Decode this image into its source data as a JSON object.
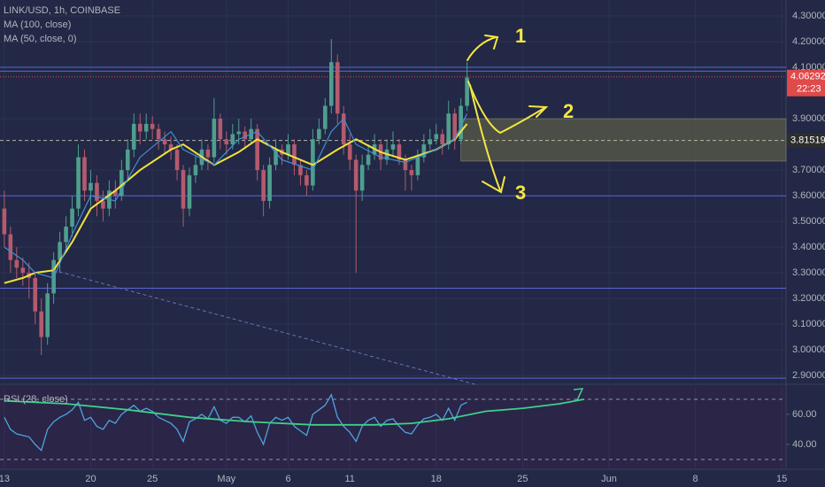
{
  "chart_data": {
    "type": "candlestick",
    "title": "LINK/USD, 1h, COINBASE",
    "legend_items": [
      "MA (100, close)",
      "MA (50, close, 0)"
    ],
    "up_color": "#4f9e8e",
    "down_color": "#b55a6e",
    "xlim": [
      -0.7,
      126.7
    ],
    "xticks": [
      {
        "value": 0,
        "label": "13"
      },
      {
        "value": 14,
        "label": "20"
      },
      {
        "value": 24,
        "label": "25"
      },
      {
        "value": 36,
        "label": "May"
      },
      {
        "value": 46,
        "label": "6"
      },
      {
        "value": 56,
        "label": "11"
      },
      {
        "value": 70,
        "label": "18"
      },
      {
        "value": 84,
        "label": "25"
      },
      {
        "value": 98,
        "label": "Jun"
      },
      {
        "value": 112,
        "label": "8"
      },
      {
        "value": 126,
        "label": "15"
      }
    ],
    "ylim": [
      2.88,
      4.362
    ],
    "yticks": [
      {
        "value": 4.3,
        "label": "4.30000"
      },
      {
        "value": 4.2,
        "label": "4.20000"
      },
      {
        "value": 4.1,
        "label": "4.10000"
      },
      {
        "value": 3.9,
        "label": "3.90000"
      },
      {
        "value": 3.7,
        "label": "3.70000"
      },
      {
        "value": 3.6,
        "label": "3.60000"
      },
      {
        "value": 3.5,
        "label": "3.50000"
      },
      {
        "value": 3.4,
        "label": "3.40000"
      },
      {
        "value": 3.3,
        "label": "3.30000"
      },
      {
        "value": 3.2,
        "label": "3.20000"
      },
      {
        "value": 3.1,
        "label": "3.10000"
      },
      {
        "value": 3.0,
        "label": "3.00000"
      },
      {
        "value": 2.9,
        "label": "2.90000"
      }
    ],
    "grid": true,
    "ohlc": [
      [
        3.55,
        3.62,
        3.4,
        3.45
      ],
      [
        3.45,
        3.48,
        3.3,
        3.35
      ],
      [
        3.35,
        3.4,
        3.28,
        3.32
      ],
      [
        3.32,
        3.36,
        3.25,
        3.3
      ],
      [
        3.3,
        3.34,
        3.2,
        3.28
      ],
      [
        3.28,
        3.3,
        3.1,
        3.15
      ],
      [
        3.15,
        3.2,
        2.98,
        3.05
      ],
      [
        3.05,
        3.26,
        3.02,
        3.22
      ],
      [
        3.22,
        3.38,
        3.18,
        3.35
      ],
      [
        3.35,
        3.46,
        3.3,
        3.42
      ],
      [
        3.42,
        3.52,
        3.38,
        3.48
      ],
      [
        3.48,
        3.6,
        3.44,
        3.55
      ],
      [
        3.55,
        3.8,
        3.52,
        3.75
      ],
      [
        3.75,
        3.78,
        3.58,
        3.62
      ],
      [
        3.62,
        3.7,
        3.56,
        3.65
      ],
      [
        3.65,
        3.68,
        3.52,
        3.58
      ],
      [
        3.58,
        3.62,
        3.5,
        3.55
      ],
      [
        3.55,
        3.66,
        3.52,
        3.62
      ],
      [
        3.62,
        3.66,
        3.55,
        3.6
      ],
      [
        3.6,
        3.74,
        3.58,
        3.7
      ],
      [
        3.7,
        3.82,
        3.66,
        3.78
      ],
      [
        3.78,
        3.92,
        3.75,
        3.88
      ],
      [
        3.88,
        3.92,
        3.8,
        3.85
      ],
      [
        3.85,
        3.92,
        3.82,
        3.88
      ],
      [
        3.88,
        3.91,
        3.82,
        3.86
      ],
      [
        3.86,
        3.88,
        3.78,
        3.82
      ],
      [
        3.82,
        3.85,
        3.76,
        3.8
      ],
      [
        3.8,
        3.83,
        3.74,
        3.78
      ],
      [
        3.78,
        3.8,
        3.66,
        3.7
      ],
      [
        3.7,
        3.72,
        3.48,
        3.55
      ],
      [
        3.55,
        3.71,
        3.52,
        3.68
      ],
      [
        3.68,
        3.76,
        3.65,
        3.72
      ],
      [
        3.72,
        3.82,
        3.7,
        3.78
      ],
      [
        3.78,
        3.8,
        3.7,
        3.75
      ],
      [
        3.75,
        3.98,
        3.73,
        3.9
      ],
      [
        3.9,
        3.92,
        3.78,
        3.82
      ],
      [
        3.82,
        3.85,
        3.76,
        3.8
      ],
      [
        3.8,
        3.88,
        3.78,
        3.84
      ],
      [
        3.84,
        3.9,
        3.8,
        3.85
      ],
      [
        3.85,
        3.87,
        3.78,
        3.82
      ],
      [
        3.82,
        3.9,
        3.8,
        3.86
      ],
      [
        3.86,
        3.88,
        3.66,
        3.7
      ],
      [
        3.7,
        3.72,
        3.52,
        3.58
      ],
      [
        3.58,
        3.75,
        3.55,
        3.72
      ],
      [
        3.72,
        3.82,
        3.7,
        3.78
      ],
      [
        3.78,
        3.8,
        3.72,
        3.76
      ],
      [
        3.76,
        3.84,
        3.74,
        3.8
      ],
      [
        3.8,
        3.82,
        3.68,
        3.72
      ],
      [
        3.72,
        3.74,
        3.64,
        3.68
      ],
      [
        3.68,
        3.7,
        3.6,
        3.64
      ],
      [
        3.64,
        3.86,
        3.62,
        3.82
      ],
      [
        3.82,
        3.9,
        3.8,
        3.86
      ],
      [
        3.86,
        3.98,
        3.84,
        3.95
      ],
      [
        3.95,
        4.21,
        3.92,
        4.12
      ],
      [
        4.12,
        4.15,
        3.88,
        3.92
      ],
      [
        3.92,
        3.95,
        3.76,
        3.8
      ],
      [
        3.8,
        3.84,
        3.7,
        3.74
      ],
      [
        3.74,
        3.76,
        3.3,
        3.62
      ],
      [
        3.62,
        3.76,
        3.58,
        3.72
      ],
      [
        3.72,
        3.8,
        3.7,
        3.76
      ],
      [
        3.76,
        3.84,
        3.74,
        3.8
      ],
      [
        3.8,
        3.82,
        3.7,
        3.74
      ],
      [
        3.74,
        3.82,
        3.72,
        3.78
      ],
      [
        3.78,
        3.85,
        3.75,
        3.8
      ],
      [
        3.8,
        3.82,
        3.72,
        3.74
      ],
      [
        3.74,
        3.76,
        3.62,
        3.7
      ],
      [
        3.7,
        3.72,
        3.62,
        3.68
      ],
      [
        3.68,
        3.78,
        3.66,
        3.75
      ],
      [
        3.75,
        3.84,
        3.73,
        3.8
      ],
      [
        3.8,
        3.86,
        3.78,
        3.82
      ],
      [
        3.82,
        3.88,
        3.8,
        3.84
      ],
      [
        3.84,
        3.86,
        3.76,
        3.8
      ],
      [
        3.8,
        3.97,
        3.78,
        3.92
      ],
      [
        3.92,
        3.94,
        3.78,
        3.82
      ],
      [
        3.82,
        3.98,
        3.8,
        3.95
      ],
      [
        3.95,
        4.12,
        3.93,
        4.06
      ]
    ],
    "series": [
      {
        "name": "MA (100, close)",
        "color": "#f2e33a",
        "x": [
          0,
          3,
          5,
          8,
          11,
          14,
          18,
          22,
          27,
          29,
          34,
          38,
          41,
          45,
          50,
          54,
          57,
          61,
          65,
          70,
          73,
          75
        ],
        "values": [
          3.26,
          3.28,
          3.3,
          3.31,
          3.42,
          3.55,
          3.62,
          3.7,
          3.78,
          3.8,
          3.72,
          3.77,
          3.82,
          3.77,
          3.72,
          3.78,
          3.82,
          3.77,
          3.74,
          3.78,
          3.82,
          3.88
        ]
      },
      {
        "name": "MA (50, close, 0)",
        "color": "#3f8fd6",
        "x": [
          0,
          3,
          5,
          8,
          11,
          14,
          18,
          22,
          27,
          29,
          34,
          38,
          41,
          45,
          50,
          53,
          55,
          57,
          61,
          65,
          70,
          73,
          75
        ],
        "values": [
          3.4,
          3.35,
          3.3,
          3.28,
          3.45,
          3.6,
          3.58,
          3.75,
          3.85,
          3.78,
          3.72,
          3.82,
          3.85,
          3.74,
          3.7,
          3.85,
          3.9,
          3.8,
          3.75,
          3.73,
          3.78,
          3.82,
          3.92
        ]
      }
    ],
    "levels": [
      {
        "value": 4.1,
        "color": "#5a67d8",
        "style": "solid"
      },
      {
        "value": 4.085,
        "color": "#5a67d8",
        "style": "solid"
      },
      {
        "value": 3.6,
        "color": "#5a67d8",
        "style": "solid"
      },
      {
        "value": 3.24,
        "color": "#5a67d8",
        "style": "solid"
      },
      {
        "value": 2.89,
        "color": "#5a67d8",
        "style": "solid"
      },
      {
        "value": 4.06292,
        "color": "#e04a4a",
        "style": "dotted"
      },
      {
        "value": 3.81519,
        "color": "#b8b8a0",
        "style": "dashed"
      }
    ],
    "zone": {
      "x": 74,
      "ylim": [
        3.735,
        3.9
      ],
      "color": "#5a5a48"
    },
    "last_price": 4.06292,
    "countdown": "22:23",
    "marked_price": 3.81519,
    "annotations": [
      "1",
      "2",
      "3"
    ],
    "rsi": {
      "label": "RSI (28, close)",
      "color": "#4fa3e0",
      "ylim": [
        23.5,
        77.6
      ],
      "bands": [
        70,
        30
      ],
      "yticks": [
        {
          "value": 60,
          "label": "60.00"
        },
        {
          "value": 40,
          "label": "40.00"
        }
      ],
      "values": [
        58,
        50,
        47,
        46,
        45,
        40,
        36,
        50,
        55,
        58,
        60,
        63,
        68,
        56,
        58,
        52,
        50,
        56,
        54,
        60,
        63,
        66,
        62,
        64,
        62,
        58,
        56,
        54,
        50,
        42,
        55,
        57,
        60,
        57,
        65,
        56,
        54,
        58,
        58,
        55,
        59,
        48,
        40,
        54,
        58,
        56,
        58,
        52,
        49,
        46,
        60,
        63,
        66,
        73,
        58,
        52,
        48,
        42,
        52,
        56,
        58,
        52,
        56,
        57,
        52,
        48,
        47,
        53,
        57,
        58,
        60,
        56,
        64,
        56,
        66,
        68
      ],
      "trend": {
        "color": "#3ed08a",
        "x": [
          0,
          10,
          20,
          30,
          40,
          50,
          60,
          66,
          72,
          78,
          84,
          90,
          94
        ],
        "values": [
          69,
          67,
          63,
          58,
          55,
          53,
          53,
          54,
          57,
          62,
          64,
          67,
          70
        ]
      }
    }
  }
}
